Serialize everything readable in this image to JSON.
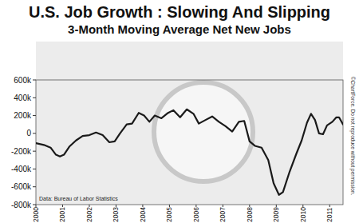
{
  "chart_data": {
    "type": "line",
    "title": "U.S. Job Growth : Slowing And Slipping",
    "subtitle": "3-Month Moving Average Net New Jobs",
    "annotations": [
      "Data: Bureau of Labor Statistics",
      "©ChartForce. Do not reproduce without permission."
    ],
    "color": "#1a1a1a",
    "grid": false,
    "x": [
      2000.0,
      2000.3,
      2000.55,
      2000.75,
      2000.9,
      2001.05,
      2001.25,
      2001.5,
      2001.75,
      2002.0,
      2002.25,
      2002.5,
      2002.75,
      2002.95,
      2003.15,
      2003.4,
      2003.6,
      2003.85,
      2004.05,
      2004.25,
      2004.45,
      2004.7,
      2004.95,
      2005.15,
      2005.4,
      2005.65,
      2005.9,
      2006.1,
      2006.35,
      2006.6,
      2006.85,
      2007.1,
      2007.35,
      2007.6,
      2007.8,
      2008.0,
      2008.2,
      2008.45,
      2008.7,
      2008.9,
      2009.1,
      2009.25,
      2009.5,
      2009.75,
      2009.95,
      2010.15,
      2010.3,
      2010.45,
      2010.6,
      2010.75,
      2010.9,
      2011.1,
      2011.25,
      2011.35,
      2011.5
    ],
    "values": [
      -110,
      -130,
      -160,
      -240,
      -260,
      -240,
      -150,
      -80,
      -30,
      -20,
      10,
      -20,
      -100,
      -90,
      0,
      100,
      110,
      230,
      200,
      130,
      200,
      170,
      230,
      260,
      180,
      270,
      220,
      110,
      150,
      190,
      130,
      80,
      20,
      130,
      140,
      -90,
      -140,
      -160,
      -300,
      -560,
      -690,
      -660,
      -430,
      -230,
      -80,
      120,
      220,
      150,
      0,
      -10,
      90,
      130,
      180,
      180,
      100
    ],
    "xlim": [
      2000,
      2011.5
    ],
    "xticks": [
      2000,
      2001,
      2002,
      2003,
      2004,
      2005,
      2006,
      2007,
      2008,
      2009,
      2010,
      2011
    ],
    "ylim": [
      -800,
      600
    ],
    "yticks": [
      {
        "value": -800,
        "label": "-800k"
      },
      {
        "value": -600,
        "label": "-600k"
      },
      {
        "value": -400,
        "label": "-400k"
      },
      {
        "value": -200,
        "label": "-200k"
      },
      0,
      {
        "value": 200,
        "label": "200k"
      },
      {
        "value": 400,
        "label": "400k"
      },
      {
        "value": 600,
        "label": "600k"
      }
    ]
  }
}
